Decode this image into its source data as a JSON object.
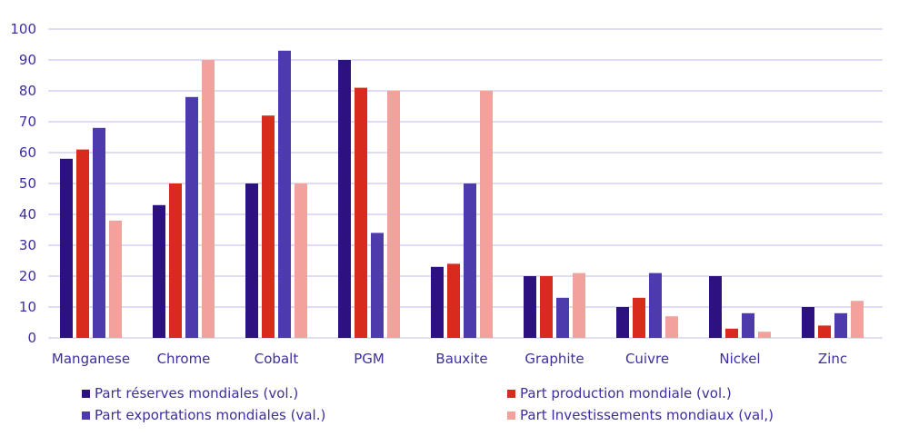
{
  "chart_data": {
    "type": "bar",
    "title": "",
    "xlabel": "",
    "ylabel": "",
    "ylim": [
      0,
      100
    ],
    "yticks": [
      "0",
      "10",
      "20",
      "30",
      "40",
      "50",
      "60",
      "70",
      "80",
      "90",
      "100"
    ],
    "grid": true,
    "legend_position": "bottom",
    "categories": [
      "Manganese",
      "Chrome",
      "Cobalt",
      "PGM",
      "Bauxite",
      "Graphite",
      "Cuivre",
      "Nickel",
      "Zinc"
    ],
    "series": [
      {
        "name": "Part réserves mondiales (vol.)",
        "color": "#2b1280",
        "values": [
          58,
          43,
          50,
          90,
          23,
          20,
          10,
          20,
          10
        ]
      },
      {
        "name": "Part production mondiale (vol.)",
        "color": "#d92a1e",
        "values": [
          61,
          50,
          72,
          81,
          24,
          20,
          13,
          3,
          4
        ]
      },
      {
        "name": "Part exportations mondiales (val.)",
        "color": "#4d3aad",
        "values": [
          68,
          78,
          93,
          34,
          50,
          13,
          21,
          8,
          8
        ]
      },
      {
        "name": "Part Investissements mondiaux (val,)",
        "color": "#f2a29c",
        "values": [
          38,
          90,
          50,
          80,
          80,
          21,
          7,
          2,
          12
        ]
      }
    ]
  }
}
